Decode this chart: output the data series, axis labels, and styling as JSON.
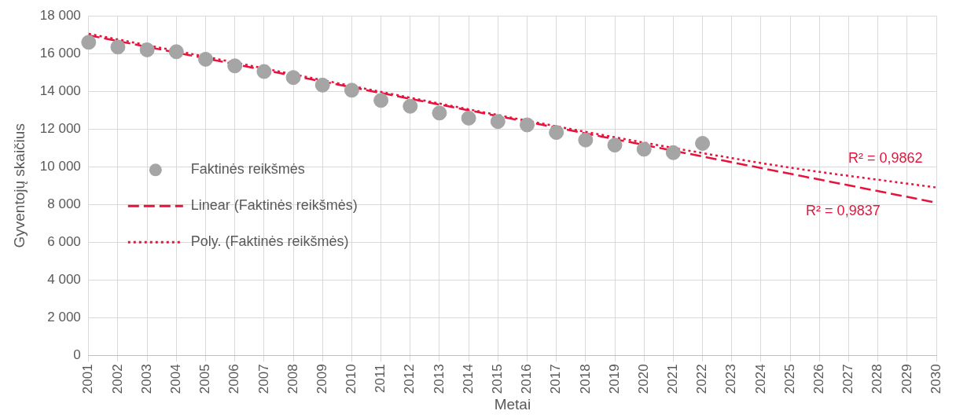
{
  "chart_data": {
    "type": "scatter",
    "xlabel": "Metai",
    "ylabel": "Gyventojų skaičius",
    "categories": [
      "2001",
      "2002",
      "2003",
      "2004",
      "2005",
      "2006",
      "2007",
      "2008",
      "2009",
      "2010",
      "2011",
      "2012",
      "2013",
      "2014",
      "2015",
      "2016",
      "2017",
      "2018",
      "2019",
      "2020",
      "2021",
      "2022",
      "2023",
      "2024",
      "2025",
      "2026",
      "2027",
      "2028",
      "2029",
      "2030"
    ],
    "ylim": [
      0,
      18000
    ],
    "yticks": [
      0,
      {
        "value": 2000,
        "label": "2 000"
      },
      {
        "value": 4000,
        "label": "4 000"
      },
      {
        "value": 6000,
        "label": "6 000"
      },
      {
        "value": 8000,
        "label": "8 000"
      },
      {
        "value": 10000,
        "label": "10 000"
      },
      {
        "value": 12000,
        "label": "12 000"
      },
      {
        "value": 14000,
        "label": "14 000"
      },
      {
        "value": 16000,
        "label": "16 000"
      },
      {
        "value": 18000,
        "label": "18 000"
      }
    ],
    "grid": true,
    "legend": "left",
    "series": [
      {
        "name": "Faktinės reikšmės",
        "color": "#a5a5a5",
        "marker": "circle",
        "values": [
          16600,
          16350,
          16200,
          16100,
          15700,
          15350,
          15050,
          14730,
          14330,
          14060,
          13520,
          13210,
          12850,
          12580,
          12400,
          12220,
          11820,
          11420,
          11150,
          10930,
          10750,
          11240,
          null,
          null,
          null,
          null,
          null,
          null,
          null,
          null
        ]
      },
      {
        "name": "Linear (Faktinės reikšmės)",
        "type": "line",
        "color": "#e8133c",
        "line_style": "dashed",
        "values": [
          16970,
          null,
          null,
          null,
          null,
          null,
          null,
          null,
          null,
          null,
          null,
          null,
          null,
          null,
          null,
          null,
          null,
          null,
          null,
          null,
          null,
          null,
          null,
          null,
          null,
          null,
          null,
          null,
          null,
          8100
        ]
      },
      {
        "name": "Poly. (Faktinės reikšmės)",
        "type": "line",
        "color": "#e8133c",
        "line_style": "dotted",
        "values": [
          17050,
          null,
          null,
          null,
          null,
          null,
          null,
          null,
          null,
          null,
          null,
          null,
          null,
          null,
          null,
          null,
          null,
          null,
          null,
          null,
          null,
          null,
          null,
          10200,
          null,
          null,
          null,
          null,
          null,
          8900
        ]
      }
    ],
    "annotations": [
      "R² = 0,9862",
      "R² = 0,9837"
    ]
  }
}
